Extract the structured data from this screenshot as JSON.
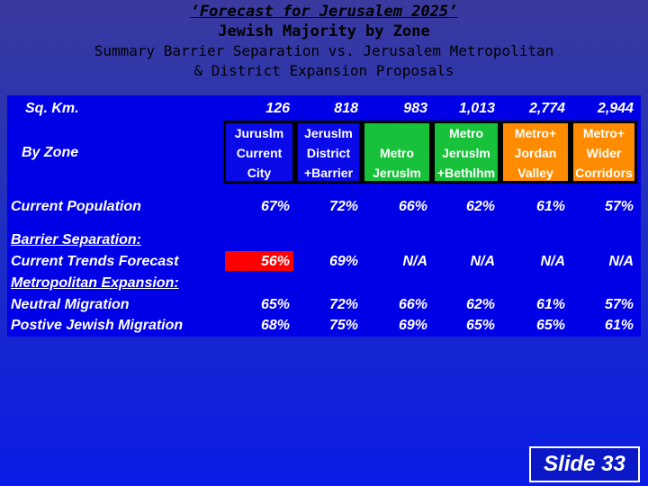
{
  "title": {
    "line1": "‘Forecast for Jerusalem 2025’",
    "line2": "Jewish Majority by Zone",
    "line3": "Summary Barrier Separation vs. Jerusalem Metropolitan",
    "line4": "& District Expansion Proposals"
  },
  "table": {
    "sqkm_label": "Sq. Km.",
    "sqkm": [
      "126",
      "818",
      "983",
      "1,013",
      "2,774",
      "2,944"
    ],
    "by_zone_label": "By Zone",
    "zones": [
      {
        "lines": [
          "Juruslm",
          "Current",
          "City"
        ],
        "color": "#0a0ae8"
      },
      {
        "lines": [
          "Jeruslm",
          "District",
          "+Barrier"
        ],
        "color": "#0a0ae8"
      },
      {
        "lines": [
          "",
          "Metro",
          "Jeruslm"
        ],
        "color": "#17c23a"
      },
      {
        "lines": [
          "Metro",
          "Jeruslm",
          "+Bethlhm"
        ],
        "color": "#17c23a"
      },
      {
        "lines": [
          "Metro+",
          "Jordan",
          "Valley"
        ],
        "color": "#ff8c00"
      },
      {
        "lines": [
          "Metro+",
          "Wider",
          "Corridors"
        ],
        "color": "#ff8c00"
      }
    ],
    "current_population": {
      "label": "Current Population",
      "values": [
        "67%",
        "72%",
        "66%",
        "62%",
        "61%",
        "57%"
      ]
    },
    "barrier_header": "Barrier Separation:",
    "current_trends": {
      "label": "Current Trends Forecast",
      "values": [
        "56%",
        "69%",
        "N/A",
        "N/A",
        "N/A",
        "N/A"
      ]
    },
    "metro_header": "Metropolitan Expansion:",
    "neutral": {
      "label": "Neutral Migration",
      "values": [
        "65%",
        "72%",
        "66%",
        "62%",
        "61%",
        "57%"
      ]
    },
    "positive": {
      "label": "Postive Jewish Migration",
      "values": [
        "68%",
        "75%",
        "69%",
        "65%",
        "65%",
        "61%"
      ]
    }
  },
  "highlight_color": "#ff0000",
  "slide_label": "Slide 33"
}
